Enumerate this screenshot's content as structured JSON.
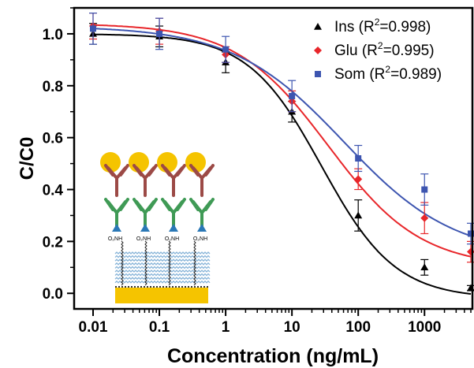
{
  "chart_data": {
    "type": "scatter",
    "xlabel": "Concentration (ng/mL)",
    "ylabel": "C/C0",
    "xscale": "log",
    "xlim": [
      0.01,
      5000
    ],
    "ylim": [
      -0.06,
      1.1
    ],
    "x_ticks": [
      0.01,
      0.1,
      1,
      10,
      100,
      1000
    ],
    "x_tick_labels": [
      "0.01",
      "0.1",
      "1",
      "10",
      "100",
      "1000"
    ],
    "y_ticks": [
      0.0,
      0.2,
      0.4,
      0.6,
      0.8,
      1.0
    ],
    "y_tick_labels": [
      "0.0",
      "0.2",
      "0.4",
      "0.6",
      "0.8",
      "1.0"
    ],
    "grid": false,
    "legend_position": "top-right",
    "series": [
      {
        "name": "Ins",
        "r2": "0.998",
        "marker": "triangle",
        "color": "#000000",
        "x": [
          0.01,
          0.1,
          1,
          10,
          100,
          1000,
          5000
        ],
        "y": [
          1.0,
          0.99,
          0.89,
          0.7,
          0.3,
          0.1,
          0.02
        ],
        "err": [
          0.04,
          0.04,
          0.04,
          0.04,
          0.06,
          0.03,
          0.01
        ],
        "fit": {
          "top": 1.0,
          "bottom": -0.02,
          "ec50": 28,
          "hill": 0.78
        }
      },
      {
        "name": "Glu",
        "r2": "0.995",
        "marker": "diamond",
        "color": "#e8262a",
        "x": [
          0.01,
          0.1,
          1,
          10,
          100,
          1000,
          5000
        ],
        "y": [
          1.03,
          1.01,
          0.92,
          0.74,
          0.44,
          0.29,
          0.16
        ],
        "err": [
          0.05,
          0.05,
          0.03,
          0.04,
          0.04,
          0.06,
          0.04
        ],
        "fit": {
          "top": 1.04,
          "bottom": 0.1,
          "ec50": 35,
          "hill": 0.62
        }
      },
      {
        "name": "Som",
        "r2": "0.989",
        "marker": "square",
        "color": "#3d55b0",
        "x": [
          0.01,
          0.1,
          1,
          10,
          100,
          1000,
          5000
        ],
        "y": [
          1.02,
          1.0,
          0.94,
          0.76,
          0.52,
          0.4,
          0.23
        ],
        "err": [
          0.06,
          0.06,
          0.05,
          0.06,
          0.05,
          0.06,
          0.04
        ],
        "fit": {
          "top": 1.03,
          "bottom": 0.14,
          "ec50": 60,
          "hill": 0.52
        }
      }
    ]
  },
  "colors": {
    "axis": "#000000",
    "gold": "#f5c400",
    "antibody_upper": "#9c4a46",
    "antibody_lower": "#3f9a55",
    "linker": "#2a78b6",
    "monolayer": "#87b4d8"
  },
  "inset": {
    "title": "surface-antibody-schematic",
    "linker_label": "O₂NH"
  }
}
